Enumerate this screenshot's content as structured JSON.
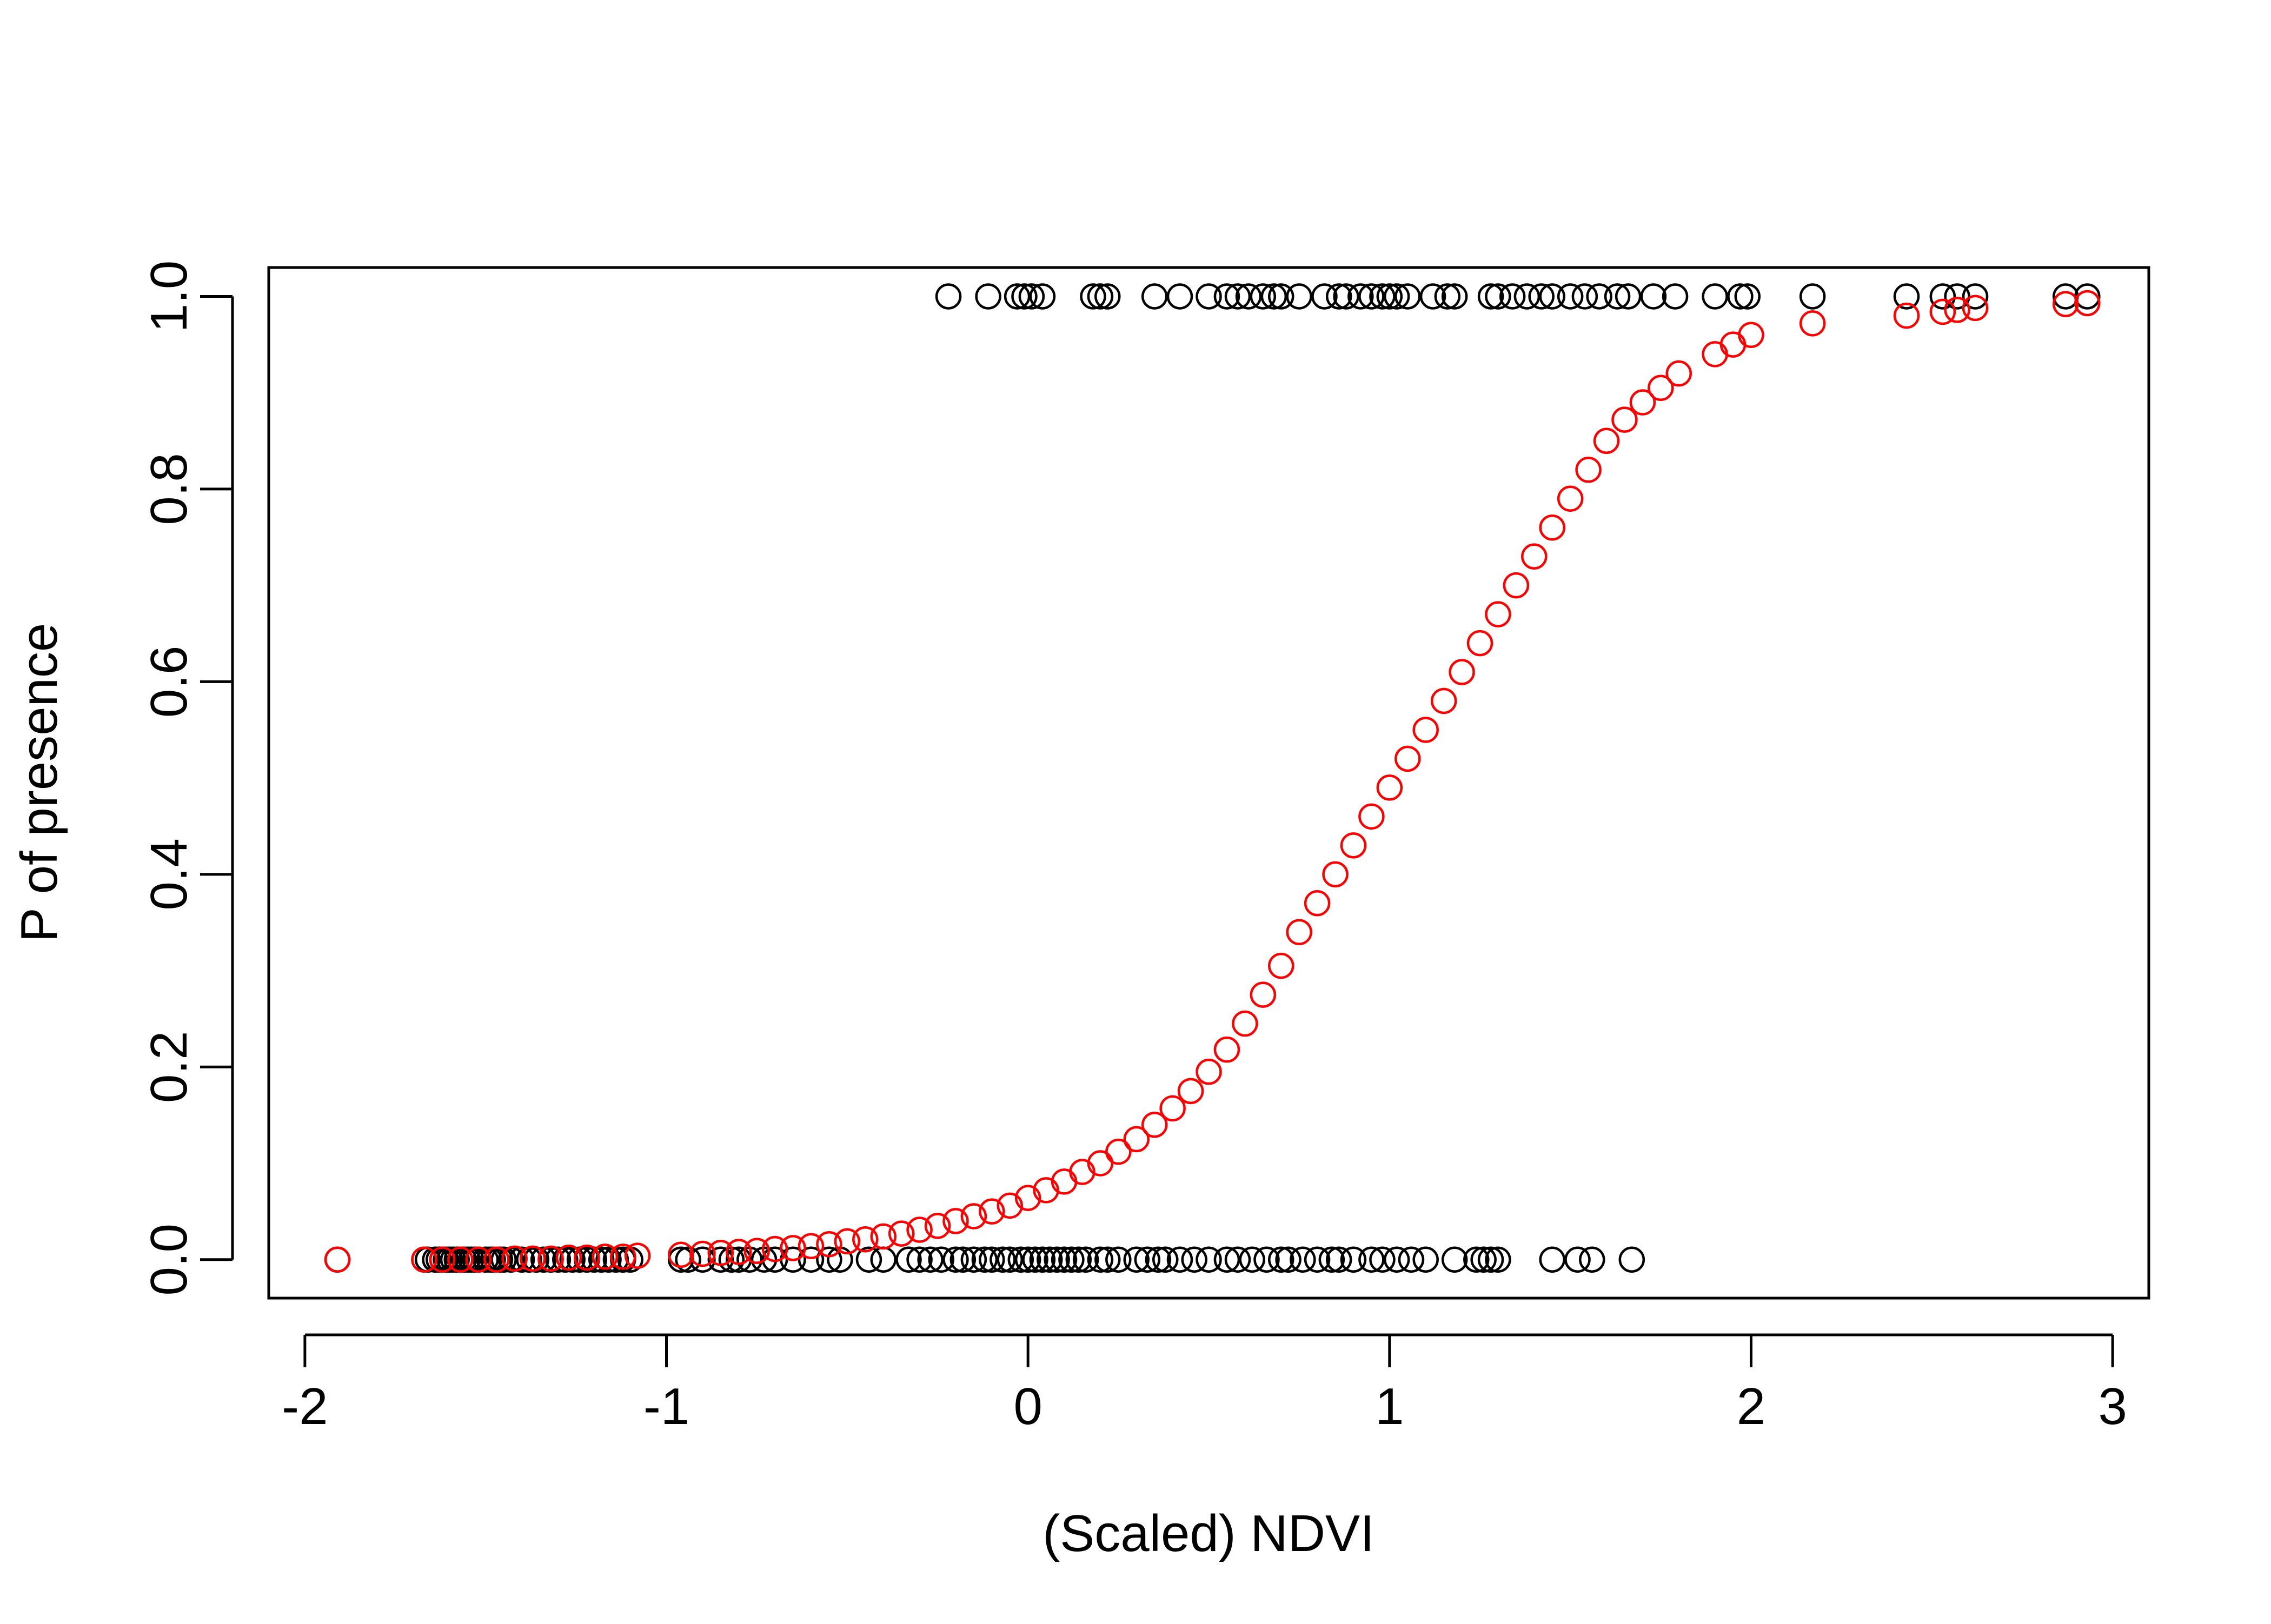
{
  "chart_data": {
    "type": "scatter",
    "xlabel": "(Scaled) NDVI",
    "ylabel": "P of presence",
    "xlim": [
      -2.1,
      3.1
    ],
    "ylim": [
      -0.04,
      1.03
    ],
    "x_ticks": [
      -2,
      -1,
      0,
      1,
      2,
      3
    ],
    "y_ticks": [
      0.0,
      0.2,
      0.4,
      0.6,
      0.8,
      1.0
    ],
    "x_tick_labels": [
      "-2",
      "-1",
      "0",
      "1",
      "2",
      "3"
    ],
    "y_tick_labels": [
      "0.0",
      "0.2",
      "0.4",
      "0.6",
      "0.8",
      "1.0"
    ],
    "grid": false,
    "legend": "none",
    "series": [
      {
        "color": "#000000",
        "marker": "open-circle",
        "x": [
          -1.91,
          -1.67,
          -1.66,
          -1.64,
          -1.63,
          -1.62,
          -1.61,
          -1.6,
          -1.59,
          -1.58,
          -1.57,
          -1.56,
          -1.55,
          -1.54,
          -1.53,
          -1.52,
          -1.5,
          -1.49,
          -1.48,
          -1.46,
          -1.45,
          -1.43,
          -1.4,
          -1.38,
          -1.36,
          -1.34,
          -1.32,
          -1.3,
          -1.28,
          -1.26,
          -1.24,
          -1.22,
          -1.2,
          -1.18,
          -1.16,
          -1.14,
          -1.12,
          -1.1,
          -0.96,
          -0.94,
          -0.9,
          -0.85,
          -0.82,
          -0.8,
          -0.77,
          -0.73,
          -0.7,
          -0.65,
          -0.6,
          -0.55,
          -0.52,
          -0.44,
          -0.4,
          -0.33,
          -0.3,
          -0.27,
          -0.24,
          -0.2,
          -0.18,
          -0.15,
          -0.12,
          -0.1,
          -0.07,
          -0.05,
          -0.02,
          0.0,
          0.02,
          0.04,
          0.06,
          0.08,
          0.1,
          0.12,
          0.14,
          0.16,
          0.2,
          0.22,
          0.25,
          0.3,
          0.33,
          0.36,
          0.38,
          0.42,
          0.46,
          0.5,
          0.55,
          0.58,
          0.62,
          0.66,
          0.7,
          0.72,
          0.76,
          0.8,
          0.84,
          0.86,
          0.9,
          0.95,
          0.98,
          1.02,
          1.06,
          1.1,
          1.18,
          1.24,
          1.26,
          1.28,
          1.3,
          1.45,
          1.52,
          1.56,
          1.67,
          -0.22,
          -0.11,
          -0.03,
          -0.01,
          0.01,
          0.04,
          0.18,
          0.2,
          0.22,
          0.35,
          0.42,
          0.5,
          0.55,
          0.58,
          0.61,
          0.65,
          0.68,
          0.7,
          0.75,
          0.82,
          0.86,
          0.88,
          0.92,
          0.95,
          0.98,
          1.0,
          1.02,
          1.05,
          1.12,
          1.16,
          1.18,
          1.28,
          1.3,
          1.34,
          1.38,
          1.42,
          1.45,
          1.5,
          1.54,
          1.58,
          1.63,
          1.66,
          1.73,
          1.79,
          1.9,
          1.97,
          1.99,
          2.17,
          2.43,
          2.53,
          2.57,
          2.62,
          2.87,
          2.93
        ],
        "y": [
          0,
          0,
          0,
          0,
          0,
          0,
          0,
          0,
          0,
          0,
          0,
          0,
          0,
          0,
          0,
          0,
          0,
          0,
          0,
          0,
          0,
          0,
          0,
          0,
          0,
          0,
          0,
          0,
          0,
          0,
          0,
          0,
          0,
          0,
          0,
          0,
          0,
          0,
          0,
          0,
          0,
          0,
          0,
          0,
          0,
          0,
          0,
          0,
          0,
          0,
          0,
          0,
          0,
          0,
          0,
          0,
          0,
          0,
          0,
          0,
          0,
          0,
          0,
          0,
          0,
          0,
          0,
          0,
          0,
          0,
          0,
          0,
          0,
          0,
          0,
          0,
          0,
          0,
          0,
          0,
          0,
          0,
          0,
          0,
          0,
          0,
          0,
          0,
          0,
          0,
          0,
          0,
          0,
          0,
          0,
          0,
          0,
          0,
          0,
          0,
          0,
          0,
          0,
          0,
          0,
          0,
          0,
          0,
          0,
          1,
          1,
          1,
          1,
          1,
          1,
          1,
          1,
          1,
          1,
          1,
          1,
          1,
          1,
          1,
          1,
          1,
          1,
          1,
          1,
          1,
          1,
          1,
          1,
          1,
          1,
          1,
          1,
          1,
          1,
          1,
          1,
          1,
          1,
          1,
          1,
          1,
          1,
          1,
          1,
          1,
          1,
          1,
          1,
          1,
          1,
          1,
          1,
          1,
          1,
          1,
          1,
          1,
          1
        ]
      },
      {
        "color": "#ff0000",
        "marker": "open-circle",
        "x": [
          -1.91,
          -1.67,
          -1.62,
          -1.57,
          -1.52,
          -1.47,
          -1.42,
          -1.37,
          -1.32,
          -1.27,
          -1.22,
          -1.17,
          -1.12,
          -1.08,
          -0.96,
          -0.9,
          -0.85,
          -0.8,
          -0.75,
          -0.7,
          -0.65,
          -0.6,
          -0.55,
          -0.5,
          -0.45,
          -0.4,
          -0.35,
          -0.3,
          -0.25,
          -0.2,
          -0.15,
          -0.1,
          -0.05,
          0.0,
          0.05,
          0.1,
          0.15,
          0.2,
          0.25,
          0.3,
          0.35,
          0.4,
          0.45,
          0.5,
          0.55,
          0.6,
          0.65,
          0.7,
          0.75,
          0.8,
          0.85,
          0.9,
          0.95,
          1.0,
          1.05,
          1.1,
          1.15,
          1.2,
          1.25,
          1.3,
          1.35,
          1.4,
          1.45,
          1.5,
          1.55,
          1.6,
          1.65,
          1.7,
          1.75,
          1.8,
          1.9,
          1.95,
          2.0,
          2.17,
          2.43,
          2.53,
          2.57,
          2.62,
          2.87,
          2.93
        ],
        "y": [
          0.0,
          0.0,
          0.0,
          0.0,
          0.0,
          0.0,
          0.001,
          0.001,
          0.001,
          0.002,
          0.002,
          0.003,
          0.003,
          0.004,
          0.005,
          0.006,
          0.007,
          0.008,
          0.009,
          0.011,
          0.012,
          0.014,
          0.016,
          0.019,
          0.021,
          0.024,
          0.027,
          0.031,
          0.035,
          0.04,
          0.045,
          0.05,
          0.056,
          0.064,
          0.072,
          0.081,
          0.091,
          0.1,
          0.112,
          0.125,
          0.14,
          0.157,
          0.175,
          0.195,
          0.218,
          0.245,
          0.275,
          0.305,
          0.34,
          0.37,
          0.4,
          0.43,
          0.46,
          0.49,
          0.52,
          0.55,
          0.58,
          0.61,
          0.64,
          0.67,
          0.7,
          0.73,
          0.76,
          0.79,
          0.82,
          0.85,
          0.872,
          0.89,
          0.905,
          0.92,
          0.94,
          0.95,
          0.96,
          0.972,
          0.98,
          0.984,
          0.986,
          0.988,
          0.992,
          0.993
        ]
      }
    ]
  }
}
